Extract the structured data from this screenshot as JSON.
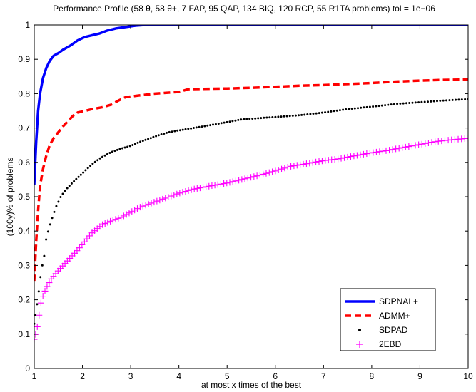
{
  "chart_data": {
    "type": "line",
    "title": "Performance Profile (58  θ, 58 θ+, 7 FAP, 95 QAP, 134 BIQ, 120 RCP, 55 R1TA problems) tol = 1e−06",
    "xlabel": "at most x times of the best",
    "ylabel": "(100y)% of problems",
    "xlim": [
      1,
      10
    ],
    "ylim": [
      0,
      1
    ],
    "xticks": [
      "1",
      "2",
      "3",
      "4",
      "5",
      "6",
      "7",
      "8",
      "9",
      "10"
    ],
    "yticks": [
      "0",
      "0.1",
      "0.2",
      "0.3",
      "0.4",
      "0.5",
      "0.6",
      "0.7",
      "0.8",
      "0.9",
      "1"
    ],
    "grid": false,
    "legend_position": "bottom-right",
    "series": [
      {
        "name": "SDPNAL+",
        "style": "solid",
        "color": "#0000ff",
        "points": [
          [
            1.0,
            0.535
          ],
          [
            1.04,
            0.66
          ],
          [
            1.08,
            0.75
          ],
          [
            1.12,
            0.8
          ],
          [
            1.18,
            0.845
          ],
          [
            1.25,
            0.875
          ],
          [
            1.32,
            0.895
          ],
          [
            1.4,
            0.91
          ],
          [
            1.5,
            0.918
          ],
          [
            1.6,
            0.928
          ],
          [
            1.75,
            0.94
          ],
          [
            1.9,
            0.955
          ],
          [
            2.05,
            0.965
          ],
          [
            2.2,
            0.97
          ],
          [
            2.35,
            0.975
          ],
          [
            2.5,
            0.983
          ],
          [
            2.7,
            0.99
          ],
          [
            2.9,
            0.994
          ],
          [
            3.1,
            0.998
          ],
          [
            3.3,
            1.0
          ],
          [
            10.0,
            1.0
          ]
        ]
      },
      {
        "name": "ADMM+",
        "style": "dashed",
        "color": "#ff0000",
        "points": [
          [
            1.0,
            0.255
          ],
          [
            1.04,
            0.37
          ],
          [
            1.08,
            0.46
          ],
          [
            1.12,
            0.53
          ],
          [
            1.18,
            0.58
          ],
          [
            1.25,
            0.62
          ],
          [
            1.32,
            0.65
          ],
          [
            1.4,
            0.67
          ],
          [
            1.5,
            0.688
          ],
          [
            1.6,
            0.705
          ],
          [
            1.7,
            0.72
          ],
          [
            1.8,
            0.735
          ],
          [
            1.9,
            0.745
          ],
          [
            2.0,
            0.748
          ],
          [
            2.2,
            0.755
          ],
          [
            2.4,
            0.76
          ],
          [
            2.6,
            0.768
          ],
          [
            2.75,
            0.78
          ],
          [
            2.9,
            0.79
          ],
          [
            3.2,
            0.795
          ],
          [
            3.5,
            0.8
          ],
          [
            4.0,
            0.805
          ],
          [
            4.2,
            0.813
          ],
          [
            5.0,
            0.815
          ],
          [
            5.5,
            0.817
          ],
          [
            6.0,
            0.82
          ],
          [
            6.5,
            0.823
          ],
          [
            7.0,
            0.825
          ],
          [
            7.5,
            0.828
          ],
          [
            8.0,
            0.831
          ],
          [
            8.5,
            0.835
          ],
          [
            9.0,
            0.838
          ],
          [
            9.5,
            0.84
          ],
          [
            10.0,
            0.841
          ]
        ]
      },
      {
        "name": "SDPAD",
        "style": "dots",
        "color": "#000000",
        "points": [
          [
            1.0,
            0.13
          ],
          [
            1.05,
            0.178
          ],
          [
            1.1,
            0.232
          ],
          [
            1.15,
            0.29
          ],
          [
            1.2,
            0.32
          ],
          [
            1.25,
            0.38
          ],
          [
            1.35,
            0.43
          ],
          [
            1.45,
            0.47
          ],
          [
            1.55,
            0.5
          ],
          [
            1.65,
            0.52
          ],
          [
            1.75,
            0.535
          ],
          [
            1.9,
            0.555
          ],
          [
            2.05,
            0.575
          ],
          [
            2.2,
            0.595
          ],
          [
            2.4,
            0.615
          ],
          [
            2.6,
            0.63
          ],
          [
            2.8,
            0.64
          ],
          [
            3.0,
            0.648
          ],
          [
            3.2,
            0.66
          ],
          [
            3.4,
            0.67
          ],
          [
            3.6,
            0.68
          ],
          [
            3.8,
            0.688
          ],
          [
            4.0,
            0.693
          ],
          [
            4.3,
            0.7
          ],
          [
            4.6,
            0.707
          ],
          [
            5.0,
            0.717
          ],
          [
            5.3,
            0.725
          ],
          [
            5.6,
            0.728
          ],
          [
            6.0,
            0.732
          ],
          [
            6.5,
            0.737
          ],
          [
            7.0,
            0.745
          ],
          [
            7.5,
            0.755
          ],
          [
            8.0,
            0.762
          ],
          [
            8.5,
            0.77
          ],
          [
            9.0,
            0.775
          ],
          [
            9.5,
            0.78
          ],
          [
            10.0,
            0.784
          ]
        ]
      },
      {
        "name": "2EBD",
        "style": "plus",
        "color": "#ff00ff",
        "points": [
          [
            1.0,
            0.085
          ],
          [
            1.05,
            0.11
          ],
          [
            1.1,
            0.155
          ],
          [
            1.15,
            0.2
          ],
          [
            1.25,
            0.235
          ],
          [
            1.35,
            0.26
          ],
          [
            1.5,
            0.285
          ],
          [
            1.7,
            0.315
          ],
          [
            1.9,
            0.345
          ],
          [
            2.05,
            0.37
          ],
          [
            2.2,
            0.395
          ],
          [
            2.4,
            0.418
          ],
          [
            2.6,
            0.43
          ],
          [
            2.8,
            0.44
          ],
          [
            3.0,
            0.455
          ],
          [
            3.2,
            0.47
          ],
          [
            3.4,
            0.48
          ],
          [
            3.6,
            0.49
          ],
          [
            3.8,
            0.5
          ],
          [
            4.0,
            0.51
          ],
          [
            4.3,
            0.522
          ],
          [
            4.6,
            0.53
          ],
          [
            5.0,
            0.54
          ],
          [
            5.3,
            0.55
          ],
          [
            5.6,
            0.56
          ],
          [
            6.0,
            0.575
          ],
          [
            6.3,
            0.588
          ],
          [
            6.6,
            0.595
          ],
          [
            7.0,
            0.605
          ],
          [
            7.3,
            0.61
          ],
          [
            7.6,
            0.618
          ],
          [
            8.0,
            0.628
          ],
          [
            8.3,
            0.634
          ],
          [
            8.6,
            0.642
          ],
          [
            9.0,
            0.652
          ],
          [
            9.3,
            0.66
          ],
          [
            9.6,
            0.665
          ],
          [
            10.0,
            0.67
          ]
        ]
      }
    ]
  }
}
